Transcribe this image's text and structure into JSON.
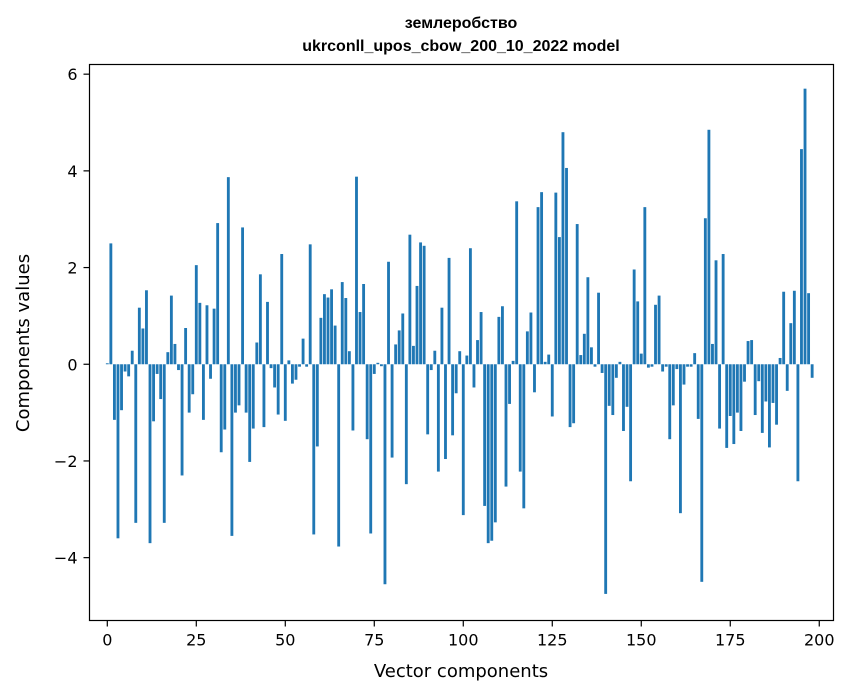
{
  "chart_data": {
    "type": "bar",
    "title": "землеробство",
    "subtitle": "ukrconll_upos_cbow_200_10_2022 model",
    "xlabel": "Vector components",
    "ylabel": "Components values",
    "xlim": [
      -5,
      204
    ],
    "ylim": [
      -5.3,
      6.2
    ],
    "xticks": [
      0,
      25,
      50,
      75,
      100,
      125,
      150,
      175,
      200
    ],
    "yticks": [
      -4,
      -2,
      0,
      2,
      4,
      6
    ],
    "xtick_labels": [
      "0",
      "25",
      "50",
      "75",
      "100",
      "125",
      "150",
      "175",
      "200"
    ],
    "ytick_labels": [
      "−4",
      "−2",
      "0",
      "2",
      "4",
      "6"
    ],
    "bar_color": "#1f77b4",
    "grid": false,
    "values": [
      0.02,
      2.5,
      -1.15,
      -3.6,
      -0.95,
      -0.15,
      -0.25,
      0.28,
      -3.28,
      1.17,
      0.74,
      1.53,
      -3.7,
      -1.18,
      -0.2,
      -0.72,
      -3.28,
      0.25,
      1.42,
      0.42,
      -0.12,
      -2.3,
      0.75,
      -1.0,
      -0.62,
      2.05,
      1.27,
      -1.15,
      1.22,
      -0.3,
      1.15,
      2.92,
      -1.82,
      -1.35,
      3.87,
      -3.55,
      -1.0,
      -0.85,
      2.83,
      -1.0,
      -2.02,
      -1.33,
      0.45,
      1.86,
      -1.3,
      1.29,
      -0.08,
      -0.48,
      -1.04,
      2.28,
      -1.17,
      0.08,
      -0.4,
      -0.32,
      -0.05,
      0.53,
      -0.05,
      2.48,
      -3.52,
      -1.7,
      0.96,
      1.45,
      1.38,
      1.55,
      0.8,
      -3.77,
      1.7,
      1.37,
      0.27,
      -1.37,
      3.88,
      1.08,
      1.66,
      -1.55,
      -3.5,
      -0.2,
      0.03,
      -0.04,
      -4.55,
      2.12,
      -1.93,
      0.41,
      0.7,
      1.05,
      -2.48,
      2.68,
      0.38,
      1.62,
      2.52,
      2.45,
      -1.45,
      -0.12,
      0.28,
      -2.22,
      1.17,
      -1.96,
      2.2,
      -1.47,
      -0.6,
      0.27,
      -3.12,
      0.18,
      2.4,
      -0.48,
      0.5,
      1.08,
      -2.93,
      -3.7,
      -3.65,
      -3.27,
      0.98,
      1.2,
      -2.53,
      -0.82,
      0.07,
      3.37,
      -2.22,
      -2.98,
      0.68,
      1.07,
      -0.58,
      3.25,
      3.56,
      0.05,
      0.2,
      -1.08,
      3.55,
      2.63,
      4.8,
      4.06,
      -1.3,
      -1.22,
      2.9,
      0.19,
      0.63,
      1.8,
      0.35,
      -0.05,
      1.48,
      -0.18,
      -4.75,
      -0.86,
      -1.05,
      -0.28,
      0.05,
      -1.38,
      -0.88,
      -2.42,
      1.96,
      1.3,
      0.22,
      3.25,
      -0.07,
      -0.05,
      1.23,
      1.42,
      -0.15,
      -0.05,
      -1.55,
      -0.85,
      -0.1,
      -3.08,
      -0.42,
      -0.05,
      -0.05,
      0.23,
      -1.13,
      -4.5,
      3.02,
      4.85,
      0.42,
      2.15,
      -1.33,
      2.28,
      -1.73,
      -1.07,
      -1.65,
      -1.0,
      -1.38,
      -0.36,
      0.48,
      0.5,
      -1.05,
      -0.35,
      -1.42,
      -0.77,
      -1.72,
      -0.8,
      -1.25,
      0.13,
      1.5,
      -0.55,
      0.85,
      1.52,
      -2.42,
      4.45,
      5.7,
      1.47,
      -0.28
    ]
  }
}
